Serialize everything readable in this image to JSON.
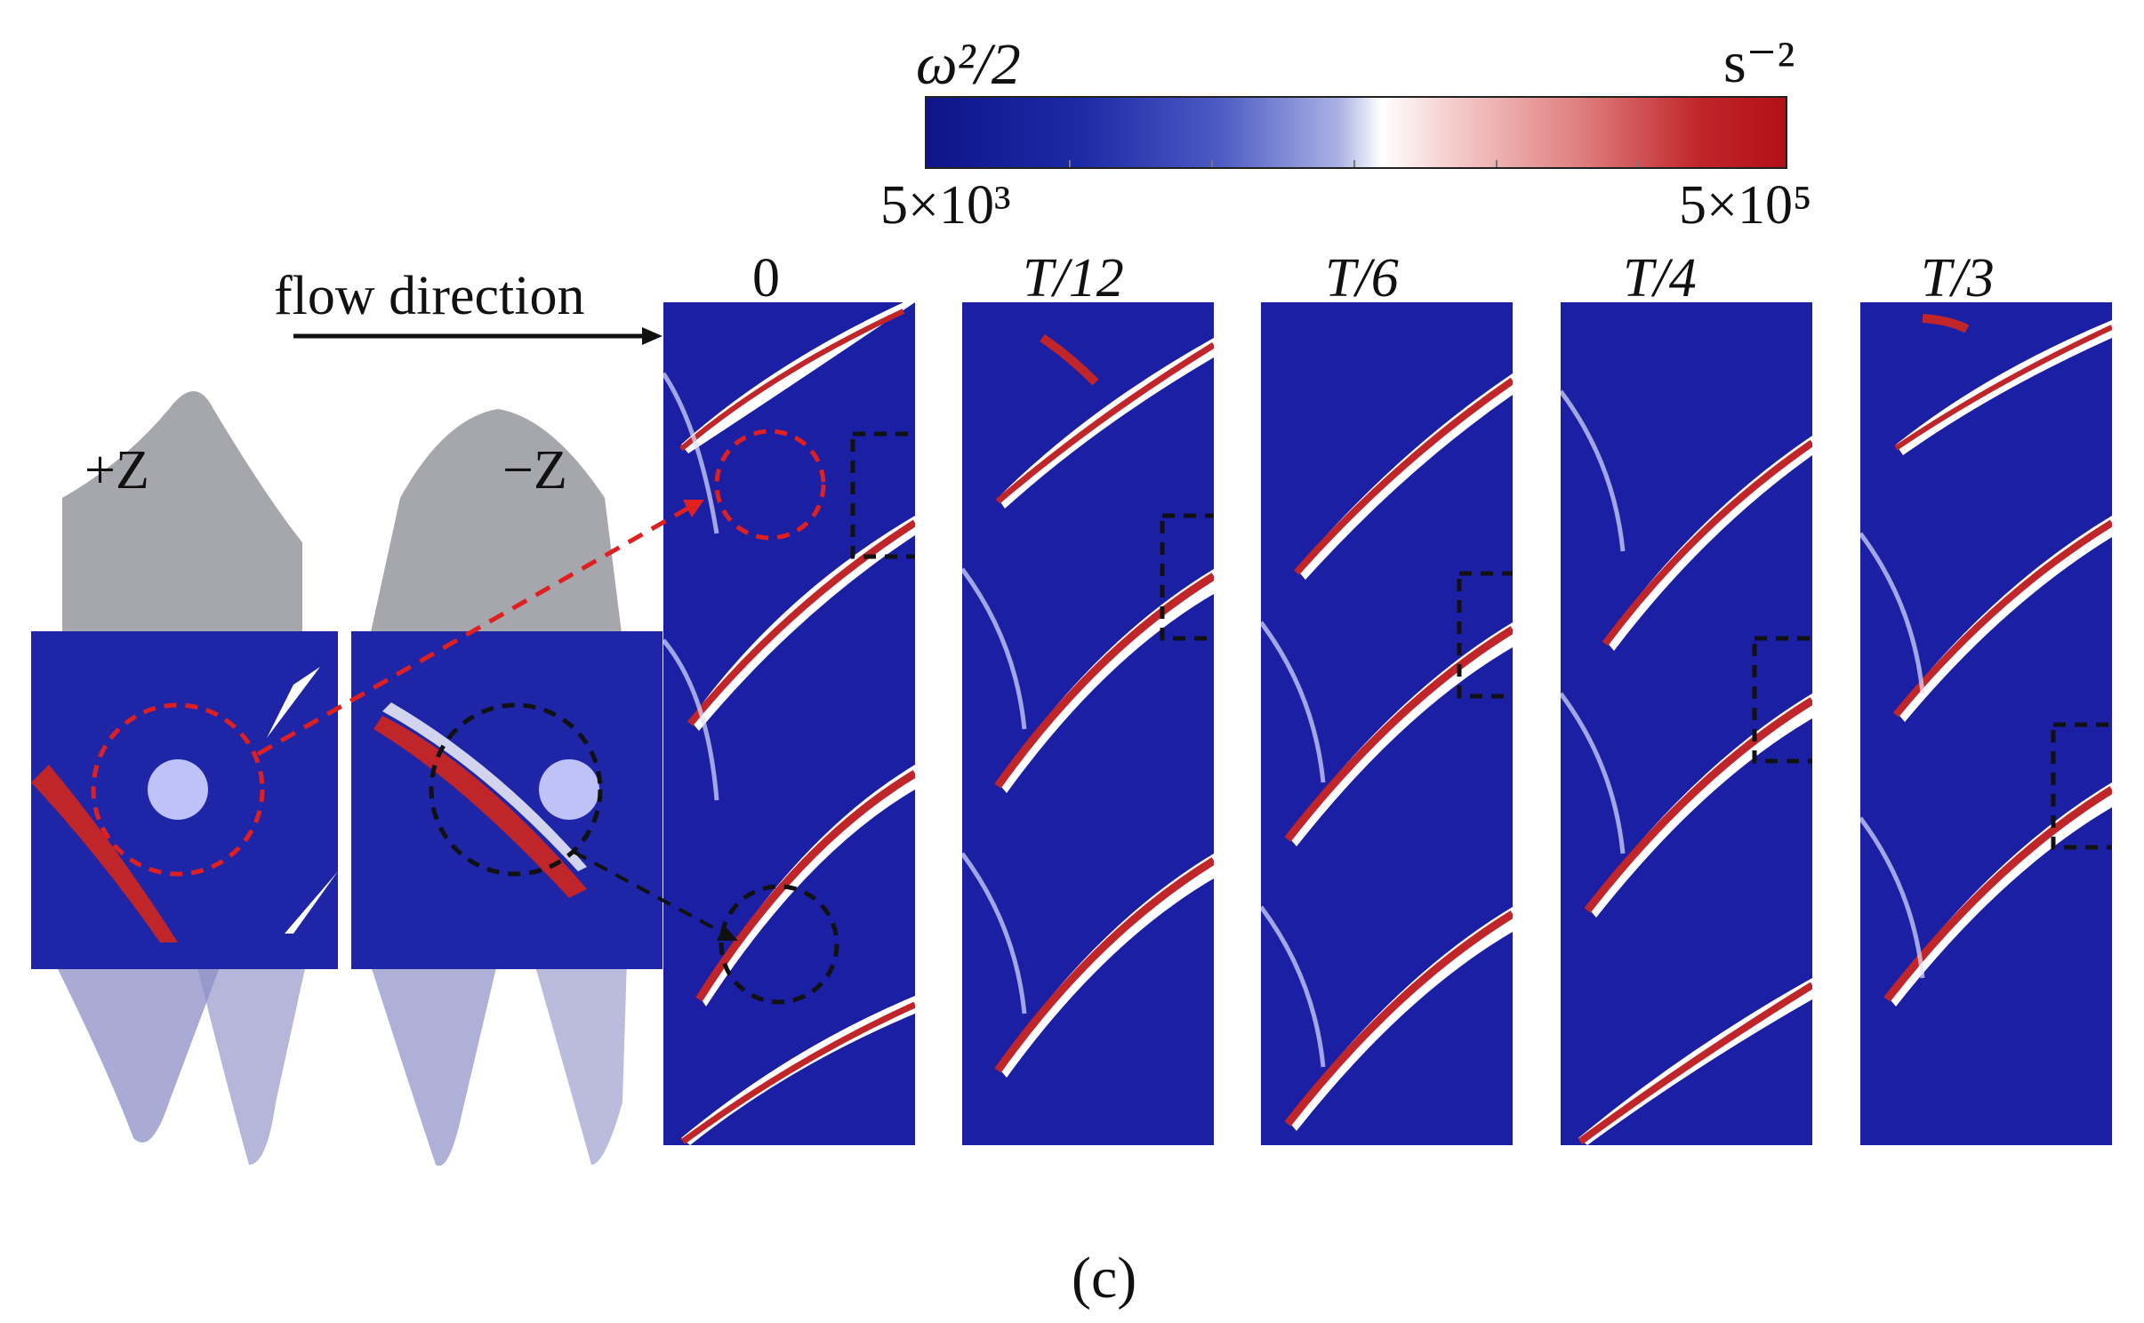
{
  "colorbar": {
    "quantity_label": "ω²/2",
    "unit_label": "s⁻²",
    "min_label": "5×10³",
    "max_label": "5×10⁵",
    "colors": [
      "#0e1489",
      "#ffffff",
      "#b21017"
    ]
  },
  "flow_label": "flow direction",
  "view_labels": {
    "plus_z": "+Z",
    "minus_z": "−Z"
  },
  "panels": [
    {
      "id": "p0",
      "time_label": "0"
    },
    {
      "id": "p1",
      "time_label": "T/12"
    },
    {
      "id": "p2",
      "time_label": "T/6"
    },
    {
      "id": "p3",
      "time_label": "T/4"
    },
    {
      "id": "p4",
      "time_label": "T/3"
    }
  ],
  "caption": "(c)"
}
